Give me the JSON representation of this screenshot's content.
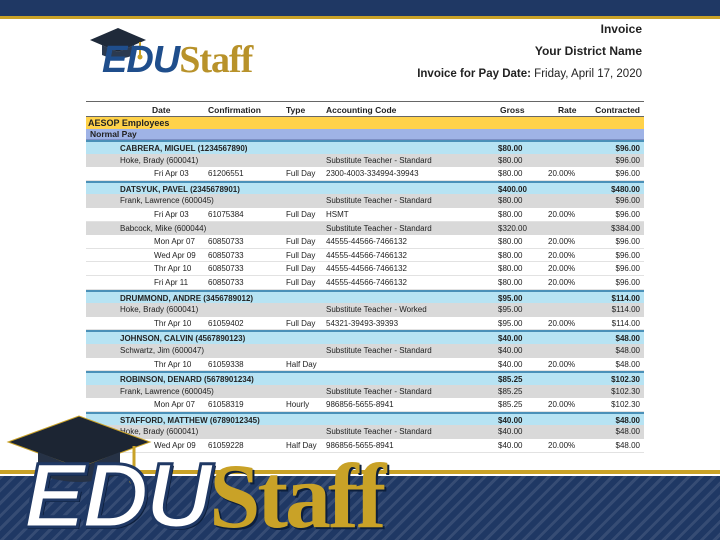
{
  "header": {
    "title": "Invoice",
    "district": "Your District Name",
    "pay_date_label": "Invoice for Pay Date:",
    "pay_date_value": "Friday, April 17, 2020"
  },
  "brand": {
    "edu": "EDU",
    "staff": "Staff"
  },
  "colors": {
    "navy": "#1f3864",
    "gold": "#c9a227",
    "section_yellow": "#ffd24a",
    "subsection_blue": "#9fb3e6",
    "employee_row": "#b7e3f3"
  },
  "columns": {
    "date": "Date",
    "confirmation": "Confirmation",
    "type": "Type",
    "accounting_code": "Accounting Code",
    "gross": "Gross",
    "rate": "Rate",
    "contracted": "Contracted"
  },
  "section": "AESOP Employees",
  "subsection": "Normal Pay",
  "rows": [
    {
      "kind": "emp",
      "name": "CABRERA, MIGUEL (1234567890)",
      "gross": "$80.00",
      "contracted": "$96.00"
    },
    {
      "kind": "sb",
      "name": "Hoke, Brady (600041)",
      "code": "Substitute Teacher - Standard",
      "gross": "$80.00",
      "contracted": "$96.00"
    },
    {
      "kind": "dt",
      "date": "Fri Apr 03",
      "conf": "61206551",
      "type": "Full Day",
      "code": "2300-4003-334994-39943",
      "gross": "$80.00",
      "rate": "20.00%",
      "contracted": "$96.00"
    },
    {
      "kind": "emp",
      "name": "DATSYUK, PAVEL (2345678901)",
      "gross": "$400.00",
      "contracted": "$480.00"
    },
    {
      "kind": "sb",
      "name": "Frank, Lawrence (600045)",
      "code": "Substitute Teacher - Standard",
      "gross": "$80.00",
      "contracted": "$96.00"
    },
    {
      "kind": "dt",
      "date": "Fri Apr 03",
      "conf": "61075384",
      "type": "Full Day",
      "code": "HSMT",
      "gross": "$80.00",
      "rate": "20.00%",
      "contracted": "$96.00"
    },
    {
      "kind": "sb",
      "name": "Babcock, Mike (600044)",
      "code": "Substitute Teacher - Standard",
      "gross": "$320.00",
      "contracted": "$384.00"
    },
    {
      "kind": "dt",
      "date": "Mon Apr 07",
      "conf": "60850733",
      "type": "Full Day",
      "code": "44555-44566-7466132",
      "gross": "$80.00",
      "rate": "20.00%",
      "contracted": "$96.00"
    },
    {
      "kind": "dt",
      "date": "Wed Apr 09",
      "conf": "60850733",
      "type": "Full Day",
      "code": "44555-44566-7466132",
      "gross": "$80.00",
      "rate": "20.00%",
      "contracted": "$96.00"
    },
    {
      "kind": "dt",
      "date": "Thr Apr 10",
      "conf": "60850733",
      "type": "Full Day",
      "code": "44555-44566-7466132",
      "gross": "$80.00",
      "rate": "20.00%",
      "contracted": "$96.00"
    },
    {
      "kind": "dt",
      "date": "Fri Apr 11",
      "conf": "60850733",
      "type": "Full Day",
      "code": "44555-44566-7466132",
      "gross": "$80.00",
      "rate": "20.00%",
      "contracted": "$96.00"
    },
    {
      "kind": "emp",
      "name": "DRUMMOND, ANDRE (3456789012)",
      "gross": "$95.00",
      "contracted": "$114.00"
    },
    {
      "kind": "sb",
      "name": "Hoke, Brady (600041)",
      "code": "Substitute Teacher - Worked",
      "gross": "$95.00",
      "contracted": "$114.00"
    },
    {
      "kind": "dt",
      "date": "Thr Apr 10",
      "conf": "61059402",
      "type": "Full Day",
      "code": "54321-39493-39393",
      "gross": "$95.00",
      "rate": "20.00%",
      "contracted": "$114.00"
    },
    {
      "kind": "emp",
      "name": "JOHNSON, CALVIN (4567890123)",
      "gross": "$40.00",
      "contracted": "$48.00"
    },
    {
      "kind": "sb",
      "name": "Schwartz, Jim (600047)",
      "code": "Substitute Teacher - Standard",
      "gross": "$40.00",
      "contracted": "$48.00"
    },
    {
      "kind": "dt",
      "date": "Thr Apr 10",
      "conf": "61059338",
      "type": "Half Day",
      "code": "",
      "gross": "$40.00",
      "rate": "20.00%",
      "contracted": "$48.00"
    },
    {
      "kind": "emp",
      "name": "ROBINSON, DENARD (5678901234)",
      "gross": "$85.25",
      "contracted": "$102.30"
    },
    {
      "kind": "sb",
      "name": "Frank, Lawrence (600045)",
      "code": "Substitute Teacher - Standard",
      "gross": "$85.25",
      "contracted": "$102.30"
    },
    {
      "kind": "dt",
      "date": "Mon Apr 07",
      "conf": "61058319",
      "type": "Hourly",
      "code": "986856-5655-8941",
      "gross": "$85.25",
      "rate": "20.00%",
      "contracted": "$102.30"
    },
    {
      "kind": "emp",
      "name": "STAFFORD, MATTHEW (6789012345)",
      "gross": "$40.00",
      "contracted": "$48.00"
    },
    {
      "kind": "sb",
      "name": "Hoke, Brady (600041)",
      "code": "Substitute Teacher - Standard",
      "gross": "$40.00",
      "contracted": "$48.00"
    },
    {
      "kind": "dt",
      "date": "Wed Apr 09",
      "conf": "61059228",
      "type": "Half Day",
      "code": "986856-5655-8941",
      "gross": "$40.00",
      "rate": "20.00%",
      "contracted": "$48.00"
    }
  ]
}
